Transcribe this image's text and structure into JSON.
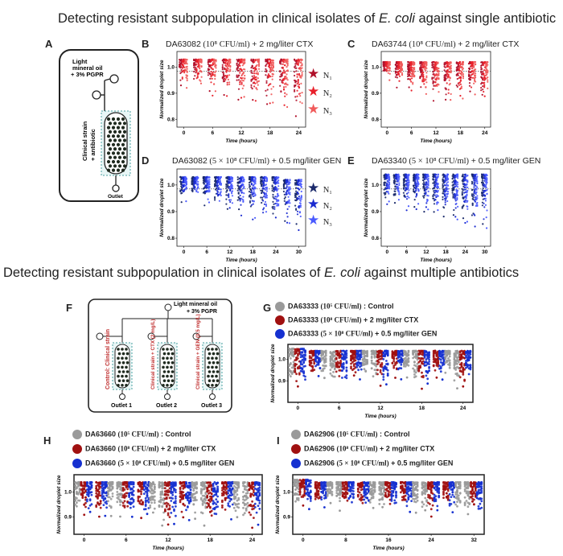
{
  "headings": {
    "single": {
      "pre": "Detecting resistant subpopulation in clinical isolates of ",
      "species": "E. coli",
      "post": " against single antibiotic"
    },
    "multi": {
      "pre": "Detecting resistant subpopulation in clinical isolates of ",
      "species": "E. coli",
      "post": " against multiple antibiotics"
    }
  },
  "panel_letters": {
    "A": "A",
    "B": "B",
    "C": "C",
    "D": "D",
    "E": "E",
    "F": "F",
    "G": "G",
    "H": "H",
    "I": "I"
  },
  "diagram_A": {
    "oil": [
      "Light",
      "mineral oil",
      "+ 3% PGPR"
    ],
    "strain": [
      "Clinical strain",
      "+ antibiotic"
    ],
    "outlet": "Outlet"
  },
  "diagram_F": {
    "oil": [
      "Light mineral oil",
      "+ 3% PGPR"
    ],
    "channels": [
      "Control: Clinical strain",
      "Clinical strain + CTX (2 mg/L)",
      "Clinical strain + GEN (0.5 mg/L)"
    ],
    "outlets": [
      "Outlet 1",
      "Outlet 2",
      "Outlet 3"
    ]
  },
  "panel_titles": {
    "B": {
      "strain": "DA63082",
      "density": "(10⁸ CFU/ml)",
      "treatment": "+ 2 mg/liter CTX"
    },
    "C": {
      "strain": "DA63744",
      "density": "(10⁸ CFU/ml)",
      "treatment": "+ 2 mg/liter CTX"
    },
    "D": {
      "strain": "DA63082",
      "density": "(5 × 10⁸ CFU/ml)",
      "treatment": "+ 0.5 mg/liter GEN"
    },
    "E": {
      "strain": "DA63340",
      "density": "(5 × 10⁸ CFU/ml)",
      "treatment": "+ 0.5 mg/liter GEN"
    }
  },
  "legend_red": [
    "N₁",
    "N₂",
    "N₃"
  ],
  "legend_blue": [
    "N₁",
    "N₂",
    "N₃"
  ],
  "colors": {
    "red1": "#b0102a",
    "red2": "#e8202a",
    "red3": "#f05a5a",
    "blue1": "#1b2a6b",
    "blue2": "#1a2ad0",
    "blue3": "#4a5aff",
    "grey": "#9a9a9a",
    "dkred": "#a01010",
    "blue": "#1530d0"
  },
  "legends_multi": {
    "G": [
      {
        "strain": "DA63333",
        "density": "(10⁵ CFU/ml)",
        "treatment": ": Control"
      },
      {
        "strain": "DA63333",
        "density": "(10⁸ CFU/ml)",
        "treatment": "+ 2 mg/liter CTX"
      },
      {
        "strain": "DA63333",
        "density": "(5 × 10⁸ CFU/ml)",
        "treatment": "+ 0.5 mg/liter GEN"
      }
    ],
    "H": [
      {
        "strain": "DA63660",
        "density": "(10⁵ CFU/ml)",
        "treatment": ": Control"
      },
      {
        "strain": "DA63660",
        "density": "(10⁸ CFU/ml)",
        "treatment": "+ 2 mg/liter CTX"
      },
      {
        "strain": "DA63660",
        "density": "(5 × 10⁸ CFU/ml)",
        "treatment": "+ 0.5 mg/liter GEN"
      }
    ],
    "I": [
      {
        "strain": "DA62906",
        "density": "(10⁵ CFU/ml)",
        "treatment": ": Control"
      },
      {
        "strain": "DA62906",
        "density": "(10⁸ CFU/ml)",
        "treatment": "+ 2 mg/liter CTX"
      },
      {
        "strain": "DA62906",
        "density": "(5 × 10⁸ CFU/ml)",
        "treatment": "+ 0.5 mg/liter GEN"
      }
    ]
  },
  "chart_data": [
    {
      "panel": "B",
      "type": "scatter",
      "ylabel": "Normalized droplet size",
      "xlabel": "Time (hours)",
      "xticks": [
        0,
        6,
        12,
        18,
        24
      ],
      "yticks": [
        1.0,
        0.9,
        0.8
      ],
      "ylim": [
        0.77,
        1.06
      ],
      "series": [
        {
          "name": "N₁",
          "color": "red1"
        },
        {
          "name": "N₂",
          "color": "red2"
        },
        {
          "name": "N₃",
          "color": "red3"
        }
      ],
      "groups": [
        {
          "x": 0,
          "low": 0.94,
          "high": 1.03
        },
        {
          "x": 3,
          "low": 0.94,
          "high": 1.03
        },
        {
          "x": 6,
          "low": 0.92,
          "high": 1.03
        },
        {
          "x": 9,
          "low": 0.91,
          "high": 1.03
        },
        {
          "x": 12,
          "low": 0.9,
          "high": 1.03
        },
        {
          "x": 15,
          "low": 0.89,
          "high": 1.03
        },
        {
          "x": 18,
          "low": 0.88,
          "high": 1.03
        },
        {
          "x": 21,
          "low": 0.87,
          "high": 1.03
        },
        {
          "x": 24,
          "low": 0.84,
          "high": 1.03
        }
      ]
    },
    {
      "panel": "C",
      "type": "scatter",
      "ylabel": "Normalized droplet size",
      "xlabel": "Time (hours)",
      "xticks": [
        0,
        6,
        12,
        18,
        24
      ],
      "yticks": [
        1.0,
        0.9,
        0.8
      ],
      "ylim": [
        0.77,
        1.06
      ],
      "series": [
        {
          "name": "N₁",
          "color": "red1"
        },
        {
          "name": "N₂",
          "color": "red2"
        },
        {
          "name": "N₃",
          "color": "red3"
        }
      ],
      "groups": [
        {
          "x": 0,
          "low": 0.97,
          "high": 1.02
        },
        {
          "x": 3,
          "low": 0.95,
          "high": 1.02
        },
        {
          "x": 6,
          "low": 0.93,
          "high": 1.02
        },
        {
          "x": 9,
          "low": 0.91,
          "high": 1.02
        },
        {
          "x": 12,
          "low": 0.88,
          "high": 1.02
        },
        {
          "x": 15,
          "low": 0.89,
          "high": 1.02
        },
        {
          "x": 18,
          "low": 0.9,
          "high": 1.02
        },
        {
          "x": 21,
          "low": 0.91,
          "high": 1.02
        },
        {
          "x": 24,
          "low": 0.9,
          "high": 1.02
        }
      ]
    },
    {
      "panel": "D",
      "type": "scatter",
      "ylabel": "Normalized droplet size",
      "xlabel": "Time (hours)",
      "xticks": [
        0,
        6,
        12,
        18,
        24,
        30
      ],
      "yticks": [
        1.0,
        0.9,
        0.8
      ],
      "ylim": [
        0.77,
        1.06
      ],
      "series": [
        {
          "name": "N₁",
          "color": "blue1"
        },
        {
          "name": "N₂",
          "color": "blue2"
        },
        {
          "name": "N₃",
          "color": "blue3"
        }
      ],
      "groups": [
        {
          "x": 0,
          "low": 0.96,
          "high": 1.03
        },
        {
          "x": 3,
          "low": 0.96,
          "high": 1.03
        },
        {
          "x": 6,
          "low": 0.94,
          "high": 1.03
        },
        {
          "x": 9,
          "low": 0.93,
          "high": 1.03
        },
        {
          "x": 12,
          "low": 0.92,
          "high": 1.03
        },
        {
          "x": 15,
          "low": 0.91,
          "high": 1.03
        },
        {
          "x": 18,
          "low": 0.9,
          "high": 1.03
        },
        {
          "x": 21,
          "low": 0.89,
          "high": 1.03
        },
        {
          "x": 24,
          "low": 0.88,
          "high": 1.03
        },
        {
          "x": 27,
          "low": 0.87,
          "high": 1.02
        },
        {
          "x": 30,
          "low": 0.86,
          "high": 1.02
        }
      ]
    },
    {
      "panel": "E",
      "type": "scatter",
      "ylabel": "Normalized droplet size",
      "xlabel": "Time (hours)",
      "xticks": [
        0,
        6,
        12,
        18,
        24,
        30
      ],
      "yticks": [
        1.0,
        0.9,
        0.8
      ],
      "ylim": [
        0.77,
        1.06
      ],
      "series": [
        {
          "name": "N₁",
          "color": "blue1"
        },
        {
          "name": "N₂",
          "color": "blue2"
        },
        {
          "name": "N₃",
          "color": "blue3"
        }
      ],
      "groups": [
        {
          "x": 0,
          "low": 0.95,
          "high": 1.04
        },
        {
          "x": 3,
          "low": 0.95,
          "high": 1.04
        },
        {
          "x": 6,
          "low": 0.93,
          "high": 1.04
        },
        {
          "x": 9,
          "low": 0.93,
          "high": 1.04
        },
        {
          "x": 12,
          "low": 0.92,
          "high": 1.04
        },
        {
          "x": 15,
          "low": 0.91,
          "high": 1.04
        },
        {
          "x": 18,
          "low": 0.9,
          "high": 1.04
        },
        {
          "x": 21,
          "low": 0.89,
          "high": 1.04
        },
        {
          "x": 24,
          "low": 0.88,
          "high": 1.04
        },
        {
          "x": 27,
          "low": 0.87,
          "high": 1.04
        },
        {
          "x": 30,
          "low": 0.86,
          "high": 1.04
        }
      ]
    },
    {
      "panel": "G",
      "type": "scatter",
      "ylabel": "Normalized droplet size",
      "xlabel": "Time (hours)",
      "xticks": [
        0,
        6,
        12,
        18,
        24
      ],
      "yticks": [
        1.0,
        0.9
      ],
      "ylim": [
        0.8,
        1.07
      ],
      "series": [
        {
          "name": "Control",
          "color": "grey"
        },
        {
          "name": "CTX",
          "color": "dkred"
        },
        {
          "name": "GEN",
          "color": "blue"
        }
      ],
      "groups": [
        {
          "x": 0,
          "low": 0.89,
          "high": 1.05
        },
        {
          "x": 3,
          "low": 0.93,
          "high": 1.04
        },
        {
          "x": 6,
          "low": 0.9,
          "high": 1.04
        },
        {
          "x": 9,
          "low": 0.93,
          "high": 1.04
        },
        {
          "x": 12,
          "low": 0.89,
          "high": 1.04
        },
        {
          "x": 15,
          "low": 0.93,
          "high": 1.04
        },
        {
          "x": 18,
          "low": 0.89,
          "high": 1.04
        },
        {
          "x": 21,
          "low": 0.93,
          "high": 1.04
        },
        {
          "x": 24,
          "low": 0.89,
          "high": 1.04
        }
      ]
    },
    {
      "panel": "H",
      "type": "scatter",
      "ylabel": "Normalized droplet size",
      "xlabel": "Time (hours)",
      "xticks": [
        0,
        6,
        12,
        18,
        24
      ],
      "yticks": [
        1.0,
        0.9
      ],
      "ylim": [
        0.83,
        1.07
      ],
      "series": [
        {
          "name": "Control",
          "color": "grey"
        },
        {
          "name": "CTX",
          "color": "dkred"
        },
        {
          "name": "GEN",
          "color": "blue"
        }
      ],
      "groups": [
        {
          "x": 0,
          "low": 0.93,
          "high": 1.04
        },
        {
          "x": 3,
          "low": 0.93,
          "high": 1.04
        },
        {
          "x": 6,
          "low": 0.92,
          "high": 1.04
        },
        {
          "x": 9,
          "low": 0.92,
          "high": 1.04
        },
        {
          "x": 12,
          "low": 0.88,
          "high": 1.04
        },
        {
          "x": 15,
          "low": 0.91,
          "high": 1.04
        },
        {
          "x": 18,
          "low": 0.89,
          "high": 1.04
        },
        {
          "x": 21,
          "low": 0.91,
          "high": 1.04
        },
        {
          "x": 24,
          "low": 0.87,
          "high": 1.04
        }
      ]
    },
    {
      "panel": "I",
      "type": "scatter",
      "ylabel": "Normalized droplet size",
      "xlabel": "Time (hours)",
      "xticks": [
        0,
        8,
        16,
        24,
        32
      ],
      "yticks": [
        1.0,
        0.9
      ],
      "ylim": [
        0.83,
        1.07
      ],
      "series": [
        {
          "name": "Control",
          "color": "grey"
        },
        {
          "name": "CTX",
          "color": "dkred"
        },
        {
          "name": "GEN",
          "color": "blue"
        }
      ],
      "groups": [
        {
          "x": 0,
          "low": 0.95,
          "high": 1.05
        },
        {
          "x": 4,
          "low": 0.96,
          "high": 1.04
        },
        {
          "x": 8,
          "low": 0.95,
          "high": 1.04
        },
        {
          "x": 12,
          "low": 0.95,
          "high": 1.04
        },
        {
          "x": 16,
          "low": 0.94,
          "high": 1.04
        },
        {
          "x": 20,
          "low": 0.94,
          "high": 1.04
        },
        {
          "x": 24,
          "low": 0.93,
          "high": 1.04
        },
        {
          "x": 28,
          "low": 0.93,
          "high": 1.04
        },
        {
          "x": 32,
          "low": 0.92,
          "high": 1.04
        }
      ]
    }
  ]
}
